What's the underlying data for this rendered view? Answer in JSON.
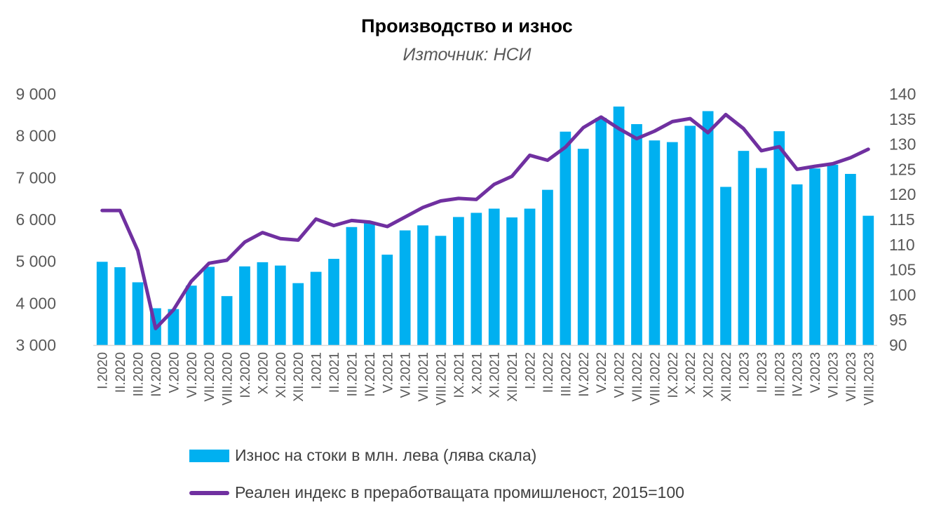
{
  "chart_data": {
    "type": "bar",
    "title": "Производство и износ",
    "subtitle": "Източник: НСИ",
    "categories": [
      "I.2020",
      "II.2020",
      "III.2020",
      "IV.2020",
      "V.2020",
      "VI.2020",
      "VII.2020",
      "VIII.2020",
      "IX.2020",
      "X.2020",
      "XI.2020",
      "XII.2020",
      "I.2021",
      "II.2021",
      "III.2021",
      "IV.2021",
      "V.2021",
      "VI.2021",
      "VII.2021",
      "VIII.2021",
      "IX.2021",
      "X.2021",
      "XI.2021",
      "XII.2021",
      "I.2022",
      "II.2022",
      "III.2022",
      "IV.2022",
      "V.2022",
      "VI.2022",
      "VII.2022",
      "VIII.2022",
      "IX.2022",
      "X.2022",
      "XI.2022",
      "XII.2022",
      "I.2023",
      "II.2023",
      "III.2023",
      "IV.2023",
      "V.2023",
      "VI.2023",
      "VII.2023",
      "VIII.2023"
    ],
    "series": [
      {
        "name": "Износ на стоки в млн. лева (лява скала)",
        "type": "bar",
        "axis": "left",
        "color": "#00B0F0",
        "values": [
          4990,
          4860,
          4500,
          3880,
          3860,
          4420,
          4870,
          4170,
          4880,
          4980,
          4900,
          4480,
          4750,
          5060,
          5820,
          5920,
          5160,
          5740,
          5860,
          5610,
          6060,
          6160,
          6260,
          6050,
          6260,
          6710,
          8100,
          7690,
          8430,
          8700,
          8280,
          7890,
          7850,
          8240,
          8590,
          6780,
          7640,
          7230,
          8110,
          6840,
          7220,
          7310,
          7090,
          6090
        ]
      },
      {
        "name": "Реален индекс в преработващата промишленост, 2015=100",
        "type": "line",
        "axis": "right",
        "color": "#7030A0",
        "values": [
          116.8,
          116.8,
          108.8,
          93.3,
          97.0,
          102.7,
          106.3,
          106.9,
          110.5,
          112.4,
          111.2,
          110.9,
          115.1,
          113.8,
          114.8,
          114.5,
          113.6,
          115.5,
          117.4,
          118.7,
          119.2,
          119.0,
          122.0,
          123.6,
          127.8,
          126.8,
          129.4,
          133.3,
          135.4,
          133.1,
          131.1,
          132.6,
          134.5,
          135.1,
          132.3,
          135.9,
          133.1,
          128.7,
          129.5,
          125.0,
          125.6,
          126.1,
          127.3,
          129.0
        ]
      }
    ],
    "y_left": {
      "min": 3000,
      "max": 9000,
      "ticks": [
        3000,
        4000,
        5000,
        6000,
        7000,
        8000,
        9000
      ],
      "tick_labels": [
        "3 000",
        "4 000",
        "5 000",
        "6 000",
        "7 000",
        "8 000",
        "9 000"
      ]
    },
    "y_right": {
      "min": 90,
      "max": 140,
      "ticks": [
        90,
        95,
        100,
        105,
        110,
        115,
        120,
        125,
        130,
        135,
        140
      ],
      "tick_labels": [
        "90",
        "95",
        "100",
        "105",
        "110",
        "115",
        "120",
        "125",
        "130",
        "135",
        "140"
      ]
    },
    "grid": false,
    "legend_position": "bottom"
  }
}
